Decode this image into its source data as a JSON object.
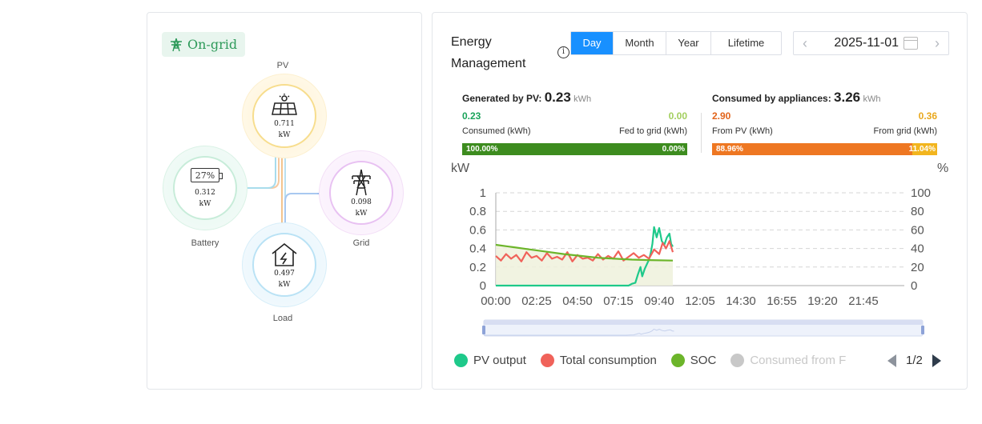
{
  "flow": {
    "status_label": "On-grid",
    "pv": {
      "label": "PV",
      "value": "0.711",
      "unit": "kW"
    },
    "battery": {
      "label": "Battery",
      "soc": "27%",
      "value": "0.312",
      "unit": "kW"
    },
    "grid": {
      "label": "Grid",
      "value": "0.098",
      "unit": "kW"
    },
    "load": {
      "label": "Load",
      "value": "0.497",
      "unit": "kW"
    }
  },
  "energy": {
    "title": "Energy Management",
    "info_symbol": "i",
    "tabs": [
      "Day",
      "Month",
      "Year",
      "Lifetime"
    ],
    "active_tab": "Day",
    "date": "2025-11-01",
    "prev_symbol": "‹",
    "next_symbol": "›",
    "generated": {
      "label": "Generated by PV:",
      "value": "0.23",
      "unit": "kWh",
      "left_value": "0.23",
      "right_value": "0.00",
      "left_label": "Consumed (kWh)",
      "right_label": "Fed to grid (kWh)",
      "left_pct": "100.00%",
      "right_pct": "0.00%",
      "left_fraction": 1.0,
      "left_color": "#1aa35a",
      "right_color": "#a3cf5e",
      "bar_left_color": "#3d8c1f",
      "bar_right_color": "#3d8c1f"
    },
    "consumed": {
      "label": "Consumed by appliances:",
      "value": "3.26",
      "unit": "kWh",
      "left_value": "2.90",
      "right_value": "0.36",
      "left_label": "From PV (kWh)",
      "right_label": "From grid (kWh)",
      "left_pct": "88.96%",
      "right_pct": "11.04%",
      "left_fraction": 0.8896,
      "left_color": "#e2641b",
      "right_color": "#e9a81d",
      "bar_left_color": "#ee7722",
      "bar_right_color": "#f2b51e"
    },
    "legend": {
      "items": [
        {
          "name": "PV output",
          "color": "#1ec98a",
          "muted": false
        },
        {
          "name": "Total consumption",
          "color": "#f0625a",
          "muted": false
        },
        {
          "name": "SOC",
          "color": "#6cb52a",
          "muted": false
        },
        {
          "name": "Consumed from F",
          "color": "#c8c8c8",
          "muted": true
        }
      ],
      "page": "1/2"
    }
  },
  "chart_data": {
    "type": "line",
    "y_unit_left": "kW",
    "y_unit_right": "%",
    "ylim_left": [
      0,
      1
    ],
    "ylim_right": [
      0,
      100
    ],
    "yticks_left": [
      "0",
      "0.2",
      "0.4",
      "0.6",
      "0.8",
      "1"
    ],
    "yticks_right": [
      "0",
      "20",
      "40",
      "60",
      "80",
      "100"
    ],
    "xlim_hours": [
      0,
      24
    ],
    "xticks": [
      "00:00",
      "02:25",
      "04:50",
      "07:15",
      "09:40",
      "12:05",
      "14:30",
      "16:55",
      "19:20",
      "21:45"
    ],
    "grid": true,
    "series": [
      {
        "name": "PV output",
        "axis": "left",
        "color": "#1ec98a",
        "x": [
          0,
          7.8,
          8.0,
          8.2,
          8.35,
          8.5,
          8.6,
          8.75,
          8.9,
          9.0,
          9.1,
          9.2,
          9.3,
          9.45,
          9.6,
          9.75,
          9.9,
          10.05,
          10.2,
          10.3,
          10.4
        ],
        "y": [
          0,
          0,
          0.02,
          0.03,
          0.12,
          0.2,
          0.1,
          0.18,
          0.24,
          0.28,
          0.35,
          0.45,
          0.63,
          0.52,
          0.62,
          0.48,
          0.44,
          0.52,
          0.56,
          0.45,
          0.42
        ]
      },
      {
        "name": "Total consumption",
        "axis": "left",
        "color": "#f0625a",
        "x": [
          0,
          0.3,
          0.6,
          0.9,
          1.2,
          1.5,
          1.8,
          2.1,
          2.4,
          2.7,
          3.0,
          3.3,
          3.6,
          3.9,
          4.2,
          4.5,
          4.8,
          5.1,
          5.4,
          5.7,
          6.0,
          6.3,
          6.6,
          6.9,
          7.2,
          7.5,
          7.8,
          8.1,
          8.4,
          8.7,
          9.0,
          9.3,
          9.6,
          9.8,
          10.0,
          10.2,
          10.4
        ],
        "y": [
          0.32,
          0.27,
          0.34,
          0.29,
          0.33,
          0.26,
          0.36,
          0.3,
          0.32,
          0.27,
          0.35,
          0.29,
          0.31,
          0.28,
          0.36,
          0.26,
          0.33,
          0.29,
          0.3,
          0.27,
          0.34,
          0.28,
          0.32,
          0.29,
          0.37,
          0.27,
          0.31,
          0.35,
          0.3,
          0.33,
          0.29,
          0.39,
          0.34,
          0.46,
          0.4,
          0.48,
          0.36
        ]
      },
      {
        "name": "SOC",
        "axis": "right",
        "color": "#6cb52a",
        "x": [
          0,
          1,
          2,
          3,
          4,
          5,
          6,
          7,
          8,
          9,
          10.4
        ],
        "y": [
          44,
          41.5,
          39,
          36.5,
          34,
          32,
          30,
          29,
          28,
          27.5,
          27
        ]
      }
    ]
  }
}
